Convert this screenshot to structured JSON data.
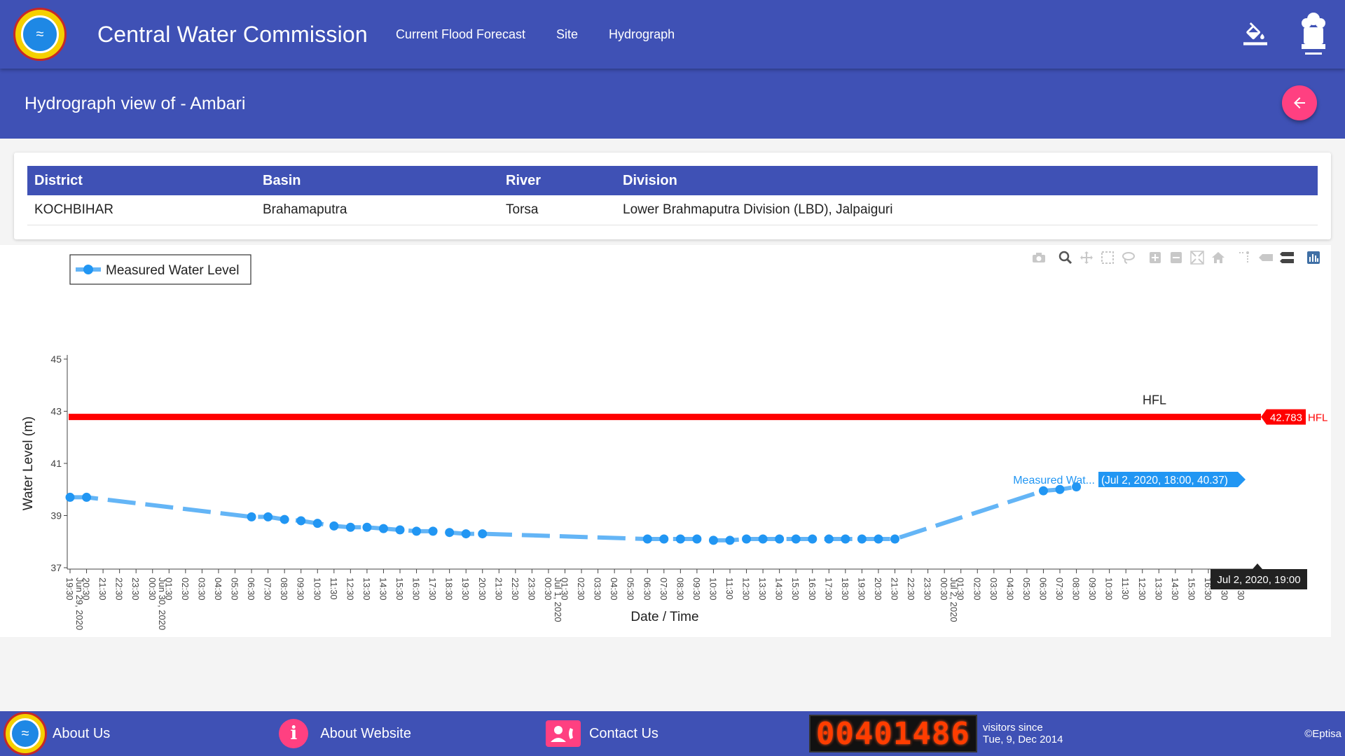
{
  "header": {
    "title": "Central Water Commission",
    "nav": [
      "Current Flood Forecast",
      "Site",
      "Hydrograph"
    ],
    "icons": {
      "logo": "cwc-logo-icon",
      "theme": "paint-bucket-icon",
      "emblem": "national-emblem-icon"
    }
  },
  "subheader": {
    "title": "Hydrograph view of - Ambari",
    "back_icon": "arrow-left-icon"
  },
  "site_info": {
    "headers": [
      "District",
      "Basin",
      "River",
      "Division"
    ],
    "values": [
      "KOCHBIHAR",
      "Brahamaputra",
      "Torsa",
      "Lower Brahmaputra Division (LBD), Jalpaiguri"
    ]
  },
  "chart_data": {
    "type": "line",
    "xlabel": "Date / Time",
    "ylabel": "Water Level (m)",
    "ylim": [
      37,
      45
    ],
    "yticks": [
      37,
      39,
      41,
      43,
      45
    ],
    "x_tick_labels": [
      "19:30",
      "20:30",
      "21:30",
      "22:30",
      "23:30",
      "00:30",
      "01:30",
      "02:30",
      "03:30",
      "04:30",
      "05:30",
      "06:30",
      "07:30",
      "08:30",
      "09:30",
      "10:30",
      "11:30",
      "12:30",
      "13:30",
      "14:30",
      "15:30",
      "16:30",
      "17:30",
      "18:30",
      "19:30",
      "20:30",
      "21:30",
      "22:30",
      "23:30",
      "00:30",
      "01:30",
      "02:30",
      "03:30",
      "04:30",
      "05:30",
      "06:30",
      "07:30",
      "08:30",
      "09:30",
      "10:30",
      "11:30",
      "12:30",
      "13:30",
      "14:30",
      "15:30",
      "16:30",
      "17:30",
      "18:30",
      "19:30",
      "20:30",
      "21:30",
      "22:30",
      "23:30",
      "00:30",
      "01:30",
      "02:30",
      "03:30",
      "04:30",
      "05:30",
      "06:30",
      "07:30",
      "08:30",
      "09:30",
      "10:30",
      "11:30",
      "12:30",
      "13:30",
      "14:30",
      "15:30",
      "16:30",
      "17:30",
      "18:30"
    ],
    "date_labels": [
      {
        "text": "Jun 29, 2020",
        "hour_index": 0
      },
      {
        "text": "Jun 30, 2020",
        "hour_index": 5
      },
      {
        "text": "Jul 1, 2020",
        "hour_index": 29
      },
      {
        "text": "Jul 2, 2020",
        "hour_index": 53
      }
    ],
    "legend": {
      "entry": "Measured Water Level",
      "position": "top-left"
    },
    "series": [
      {
        "name": "Measured Water Level",
        "color": "#2196f3",
        "points": [
          [
            0,
            39.7
          ],
          [
            1,
            39.7
          ],
          [
            11,
            38.95
          ],
          [
            12,
            38.95
          ],
          [
            13,
            38.85
          ],
          [
            14,
            38.8
          ],
          [
            15,
            38.7
          ],
          [
            16,
            38.6
          ],
          [
            17,
            38.55
          ],
          [
            18,
            38.55
          ],
          [
            19,
            38.5
          ],
          [
            20,
            38.45
          ],
          [
            21,
            38.4
          ],
          [
            22,
            38.4
          ],
          [
            23,
            38.35
          ],
          [
            24,
            38.3
          ],
          [
            25,
            38.3
          ],
          [
            35,
            38.1
          ],
          [
            36,
            38.1
          ],
          [
            37,
            38.1
          ],
          [
            38,
            38.1
          ],
          [
            39,
            38.05
          ],
          [
            40,
            38.05
          ],
          [
            41,
            38.1
          ],
          [
            42,
            38.1
          ],
          [
            43,
            38.1
          ],
          [
            44,
            38.1
          ],
          [
            45,
            38.1
          ],
          [
            46,
            38.1
          ],
          [
            47,
            38.1
          ],
          [
            48,
            38.1
          ],
          [
            49,
            38.1
          ],
          [
            50,
            38.1
          ],
          [
            59,
            39.95
          ],
          [
            60,
            40.0
          ],
          [
            61,
            40.1
          ]
        ]
      }
    ],
    "reference_lines": [
      {
        "name": "HFL",
        "value": 42.783,
        "color": "#ff0000",
        "label": "HFL",
        "value_label": "42.783"
      }
    ],
    "hover": {
      "series_label": "Measured Wat...",
      "text": "(Jul 2, 2020, 18:00, 40.37)",
      "x_label": "Jul 2, 2020, 19:00"
    }
  },
  "modebar": [
    "camera-icon",
    "zoom-icon",
    "pan-icon",
    "box-select-icon",
    "lasso-icon",
    "zoom-in-icon",
    "zoom-out-icon",
    "autoscale-icon",
    "reset-axes-icon",
    "spike-lines-icon",
    "hover-closest-icon",
    "hover-compare-icon",
    "plotly-logo-icon"
  ],
  "footer": {
    "about_us": "About Us",
    "about_website": "About Website",
    "contact_us": "Contact Us",
    "counter": "00401486",
    "visitors_line1": "visitors since",
    "visitors_line2": "Tue, 9, Dec 2014",
    "copyright": "©Eptisa"
  }
}
